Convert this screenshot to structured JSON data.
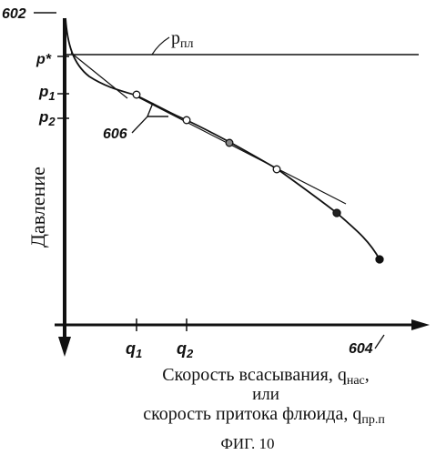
{
  "figure": {
    "caption": "ФИГ. 10",
    "refs": {
      "curve_top": "602",
      "curve_end": "604",
      "bracket": "606"
    },
    "y_axis": {
      "label": "Давление",
      "ticks": {
        "p_star": "p*",
        "p1": "p",
        "p1_sub": "1",
        "p2": "p",
        "p2_sub": "2"
      }
    },
    "reservoir_pressure": {
      "label": "p",
      "sub": "пл"
    },
    "x_axis": {
      "ticks": {
        "q1": "q",
        "q1_sub": "1",
        "q2": "q",
        "q2_sub": "2"
      },
      "label_line1": {
        "text": "Скорость всасывания, q",
        "sub": "нас",
        "tail": ","
      },
      "label_line2": "или",
      "label_line3": {
        "text": "скорость притока флюида, q",
        "sub": "пр.п"
      }
    },
    "markers": [
      {
        "fill": "open"
      },
      {
        "fill": "open"
      },
      {
        "fill": "filled"
      },
      {
        "fill": "open"
      },
      {
        "fill": "filled"
      },
      {
        "fill": "filled"
      }
    ]
  }
}
